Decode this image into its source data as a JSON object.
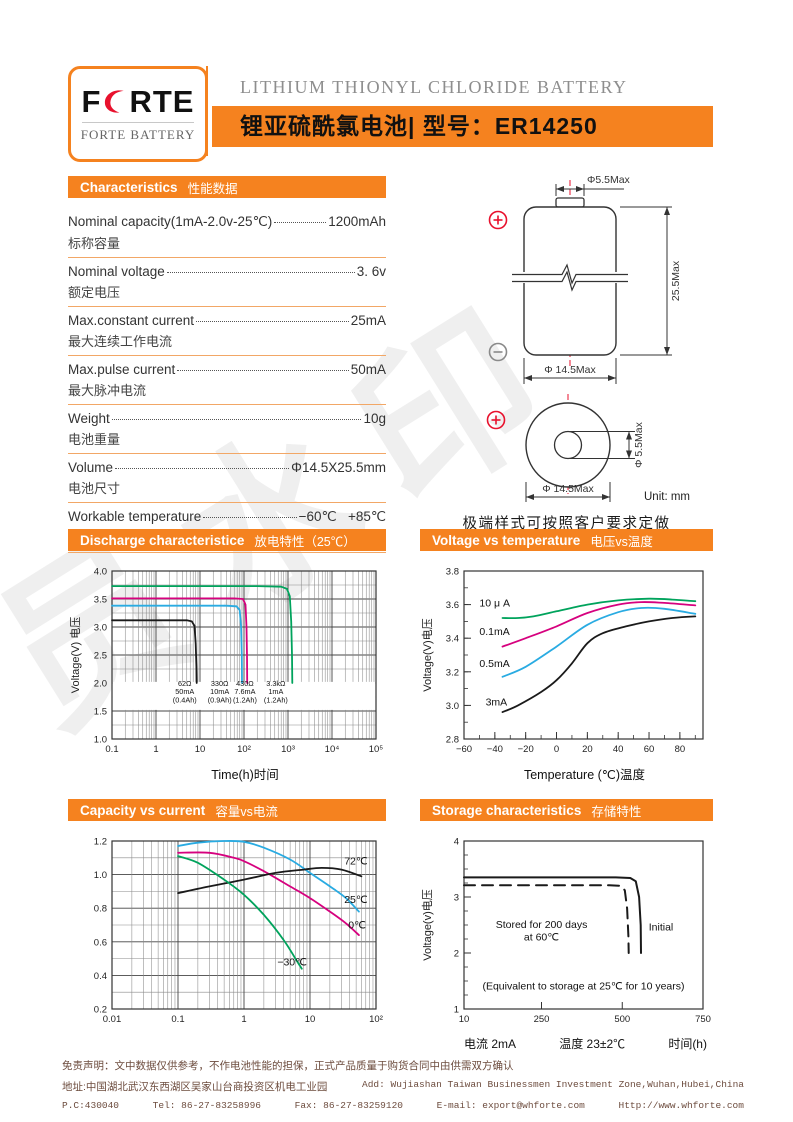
{
  "header": {
    "logo_left": "F",
    "logo_right": "RTE",
    "logo_sub": "FORTE BATTERY",
    "title_en": "LITHIUM THIONYL CHLORIDE BATTERY",
    "title_cn": "锂亚硫酰氯电池|  型号：ER14250"
  },
  "sections": {
    "characteristics": {
      "en": "Characteristics",
      "cn": "性能数据"
    },
    "discharge": {
      "en": "Discharge characteristice",
      "cn": "放电特性（25℃）"
    },
    "vtemp": {
      "en": "Voltage vs temperature",
      "cn": "电压vs温度"
    },
    "capacity": {
      "en": "Capacity vs current",
      "cn": "容量vs电流"
    },
    "storage": {
      "en": "Storage characteristics",
      "cn": "存储特性"
    }
  },
  "characteristics": {
    "rows": [
      {
        "en": "Nominal capacity(1mA-2.0v-25℃)",
        "value": "1200mAh",
        "cn": "标称容量"
      },
      {
        "en": "Nominal voltage",
        "value": "3. 6v",
        "cn": "额定电压"
      },
      {
        "en": "Max.constant current",
        "value": "25mA",
        "cn": "最大连续工作电流"
      },
      {
        "en": "Max.pulse current",
        "value": "50mA",
        "cn": "最大脉冲电流"
      },
      {
        "en": "Weight",
        "value": "10g",
        "cn": "电池重量"
      },
      {
        "en": "Volume",
        "value": "Φ14.5X25.5mm",
        "cn": "电池尺寸"
      },
      {
        "en": "Workable temperature",
        "value": "−60℃   +85℃",
        "cn": "工作温度"
      }
    ]
  },
  "diagram": {
    "cap_dia": "Φ5.5Max",
    "height": "25.5Max",
    "body_dia": "Φ 14.5Max",
    "top_inner": "Φ 5.5Max",
    "top_outer": "Φ 14.5Max",
    "unit": "Unit: mm",
    "note": "极端样式可按照客户要求定做"
  },
  "watermark": "员水印",
  "chart_data": [
    {
      "type": "line",
      "title": "Discharge characteristice 放电特性（25℃）",
      "xlabel": "Time(h)时间",
      "ylabel": "Voltage(V) 电压",
      "xscale": "log",
      "xlim": [
        0.1,
        100000
      ],
      "xticks": [
        0.1,
        1,
        10,
        100,
        1000,
        10000,
        100000
      ],
      "xtick_labels": [
        "0.1",
        "1",
        "10",
        "10²",
        "10³",
        "10⁴",
        "10⁵"
      ],
      "ylim": [
        1.0,
        4.0
      ],
      "yticks": [
        1.0,
        1.5,
        2.0,
        2.5,
        3.0,
        3.5,
        4.0
      ],
      "ytick_labels": [
        "1.0",
        "1.5",
        "2.0",
        "2.5",
        "3.0",
        "3.5",
        "4.0"
      ],
      "y_minor": 0.25,
      "grid": "full",
      "band": [
        1.52,
        2.02
      ],
      "smooth": false,
      "series": [
        {
          "name": "3.3kΩ 1mA (1.2Ah)",
          "color": "#00A35C",
          "points": [
            [
              0.1,
              3.73
            ],
            [
              10,
              3.73
            ],
            [
              200,
              3.73
            ],
            [
              700,
              3.72
            ],
            [
              950,
              3.68
            ],
            [
              1100,
              3.55
            ],
            [
              1180,
              3.1
            ],
            [
              1230,
              2.5
            ],
            [
              1250,
              2.0
            ]
          ]
        },
        {
          "name": "430Ω 7.6mA (1.2Ah)",
          "color": "#D6017E",
          "points": [
            [
              0.1,
              3.51
            ],
            [
              5,
              3.51
            ],
            [
              60,
              3.51
            ],
            [
              95,
              3.5
            ],
            [
              108,
              3.4
            ],
            [
              114,
              3.0
            ],
            [
              117,
              2.5
            ],
            [
              118,
              2.0
            ]
          ]
        },
        {
          "name": "330Ω 10mA (0.9Ah)",
          "color": "#29ABE2",
          "points": [
            [
              0.1,
              3.38
            ],
            [
              5,
              3.38
            ],
            [
              40,
              3.38
            ],
            [
              68,
              3.37
            ],
            [
              80,
              3.3
            ],
            [
              86,
              3.0
            ],
            [
              89,
              2.5
            ],
            [
              90,
              2.0
            ]
          ]
        },
        {
          "name": "62Ω 50mA (0.4Ah)",
          "color": "#1a1a1a",
          "points": [
            [
              0.1,
              3.12
            ],
            [
              2,
              3.12
            ],
            [
              5,
              3.12
            ],
            [
              6.5,
              3.1
            ],
            [
              7.5,
              3.02
            ],
            [
              8,
              2.7
            ],
            [
              8.3,
              2.3
            ],
            [
              8.4,
              2.0
            ]
          ]
        }
      ],
      "annotations": [
        {
          "x": 4.5,
          "y": 1.95,
          "lines": [
            "62Ω",
            "50mA",
            "(0.4Ah)"
          ]
        },
        {
          "x": 28,
          "y": 1.95,
          "lines": [
            "330Ω",
            "10mA",
            "(0.9Ah)"
          ]
        },
        {
          "x": 105,
          "y": 1.95,
          "lines": [
            "430Ω",
            "7.6mA",
            "(1.2Ah)"
          ]
        },
        {
          "x": 530,
          "y": 1.95,
          "lines": [
            "3.3kΩ",
            "1mA",
            "(1.2Ah)"
          ]
        }
      ]
    },
    {
      "type": "line",
      "title": "Voltage vs temperature 电压vs温度",
      "xlabel": "Temperature (℃)温度",
      "ylabel": "Voltage(V)电压",
      "xscale": "linear",
      "xlim": [
        -60,
        95
      ],
      "xticks": [
        -60,
        -40,
        -20,
        0,
        20,
        40,
        60,
        80
      ],
      "xtick_labels": [
        "−60",
        "−40",
        "−20",
        "0",
        "20",
        "40",
        "60",
        "80"
      ],
      "x_minor": 10,
      "ylim": [
        2.8,
        3.8
      ],
      "yticks": [
        2.8,
        3.0,
        3.2,
        3.4,
        3.6,
        3.8
      ],
      "ytick_labels": [
        "2.8",
        "3.0",
        "3.2",
        "3.4",
        "3.6",
        "3.8"
      ],
      "y_minor": 0.1,
      "grid": "ticks",
      "smooth": true,
      "series": [
        {
          "name": "10 μ A",
          "color": "#00A35C",
          "points": [
            [
              -35,
              3.52
            ],
            [
              -25,
              3.52
            ],
            [
              -15,
              3.53
            ],
            [
              0,
              3.56
            ],
            [
              20,
              3.6
            ],
            [
              40,
              3.625
            ],
            [
              60,
              3.635
            ],
            [
              75,
              3.63
            ],
            [
              90,
              3.62
            ]
          ]
        },
        {
          "name": "0.1mA",
          "color": "#D6017E",
          "points": [
            [
              -35,
              3.35
            ],
            [
              -20,
              3.4
            ],
            [
              0,
              3.47
            ],
            [
              20,
              3.55
            ],
            [
              40,
              3.6
            ],
            [
              55,
              3.615
            ],
            [
              70,
              3.61
            ],
            [
              90,
              3.595
            ]
          ]
        },
        {
          "name": "0.5mA",
          "color": "#29ABE2",
          "points": [
            [
              -35,
              3.17
            ],
            [
              -20,
              3.23
            ],
            [
              0,
              3.35
            ],
            [
              20,
              3.48
            ],
            [
              40,
              3.555
            ],
            [
              55,
              3.58
            ],
            [
              70,
              3.575
            ],
            [
              90,
              3.545
            ]
          ]
        },
        {
          "name": "3mA",
          "color": "#1a1a1a",
          "points": [
            [
              -35,
              2.96
            ],
            [
              -25,
              3.0
            ],
            [
              -10,
              3.08
            ],
            [
              0,
              3.15
            ],
            [
              10,
              3.25
            ],
            [
              20,
              3.37
            ],
            [
              30,
              3.43
            ],
            [
              45,
              3.47
            ],
            [
              60,
              3.5
            ],
            [
              75,
              3.52
            ],
            [
              90,
              3.53
            ]
          ]
        }
      ],
      "labels": [
        {
          "x": -50,
          "y": 3.59,
          "text": "10 μ A",
          "anchor": "start"
        },
        {
          "x": -50,
          "y": 3.42,
          "text": "0.1mA",
          "anchor": "start"
        },
        {
          "x": -50,
          "y": 3.23,
          "text": "0.5mA",
          "anchor": "start"
        },
        {
          "x": -46,
          "y": 3.0,
          "text": "3mA",
          "anchor": "start"
        }
      ]
    },
    {
      "type": "line",
      "title": "Capacity vs current 容量vs电流",
      "xlabel": "",
      "ylabel": "",
      "xscale": "log",
      "xlim": [
        0.01,
        100
      ],
      "xticks": [
        0.01,
        0.1,
        1,
        10,
        100
      ],
      "xtick_labels": [
        "0.01",
        "0.1",
        "1",
        "10",
        "10²"
      ],
      "ylim": [
        0.2,
        1.2
      ],
      "yticks": [
        0.2,
        0.4,
        0.6,
        0.8,
        1.0,
        1.2
      ],
      "ytick_labels": [
        "0.2",
        "0.4",
        "0.6",
        "0.8",
        "1.0",
        "1.2"
      ],
      "y_minor": 0.1,
      "grid": "full",
      "smooth": true,
      "series": [
        {
          "name": "25℃",
          "color": "#29ABE2",
          "points": [
            [
              0.1,
              1.17
            ],
            [
              0.2,
              1.19
            ],
            [
              0.5,
              1.2
            ],
            [
              1,
              1.195
            ],
            [
              2,
              1.16
            ],
            [
              5,
              1.09
            ],
            [
              10,
              1.01
            ],
            [
              20,
              0.93
            ],
            [
              35,
              0.86
            ],
            [
              55,
              0.78
            ]
          ]
        },
        {
          "name": "0℃",
          "color": "#D6017E",
          "points": [
            [
              0.1,
              1.13
            ],
            [
              0.3,
              1.13
            ],
            [
              0.7,
              1.1
            ],
            [
              1,
              1.08
            ],
            [
              2,
              1.02
            ],
            [
              5,
              0.93
            ],
            [
              10,
              0.86
            ],
            [
              20,
              0.78
            ],
            [
              35,
              0.71
            ],
            [
              55,
              0.64
            ]
          ]
        },
        {
          "name": "72℃",
          "color": "#1a1a1a",
          "points": [
            [
              0.1,
              0.89
            ],
            [
              0.3,
              0.93
            ],
            [
              1,
              0.97
            ],
            [
              3,
              1.01
            ],
            [
              8,
              1.03
            ],
            [
              15,
              1.04
            ],
            [
              30,
              1.03
            ],
            [
              60,
              0.99
            ]
          ]
        },
        {
          "name": "−30℃",
          "color": "#00A35C",
          "points": [
            [
              0.1,
              1.11
            ],
            [
              0.2,
              1.07
            ],
            [
              0.5,
              0.97
            ],
            [
              1,
              0.88
            ],
            [
              2,
              0.76
            ],
            [
              4,
              0.61
            ],
            [
              6,
              0.5
            ],
            [
              7.5,
              0.44
            ]
          ]
        }
      ],
      "labels": [
        {
          "x": 33,
          "y": 1.06,
          "text": "72℃",
          "anchor": "start"
        },
        {
          "x": 33,
          "y": 0.83,
          "text": "25℃",
          "anchor": "start"
        },
        {
          "x": 38,
          "y": 0.68,
          "text": "0℃",
          "anchor": "start"
        },
        {
          "x": 3.2,
          "y": 0.46,
          "text": "−30℃",
          "anchor": "start"
        }
      ]
    },
    {
      "type": "line",
      "title": "Storage characteristics 存储特性",
      "xlabel": "",
      "ylabel": "Voltage(v)电压",
      "xscale": "linear",
      "xlim": [
        10,
        750
      ],
      "xticks": [
        10,
        250,
        500,
        750
      ],
      "xtick_labels": [
        "10",
        "250",
        "500",
        "750"
      ],
      "ylim": [
        1,
        4
      ],
      "yticks": [
        1,
        2,
        3,
        4
      ],
      "ytick_labels": [
        "1",
        "2",
        "3",
        "4"
      ],
      "y_minor": 0.25,
      "grid": "ticks",
      "smooth": false,
      "series": [
        {
          "name": "Initial",
          "color": "#1a1a1a",
          "width": 2,
          "points": [
            [
              10,
              3.35
            ],
            [
              480,
              3.35
            ],
            [
              525,
              3.34
            ],
            [
              542,
              3.28
            ],
            [
              552,
              3.0
            ],
            [
              557,
              2.5
            ],
            [
              558,
              2.0
            ]
          ]
        },
        {
          "name": "Stored for 200 days at 60℃",
          "color": "#1a1a1a",
          "width": 2,
          "dash": "11 7",
          "points": [
            [
              10,
              3.21
            ],
            [
              460,
              3.21
            ],
            [
              495,
              3.2
            ],
            [
              508,
              3.12
            ],
            [
              515,
              2.8
            ],
            [
              519,
              2.3
            ],
            [
              520,
              2.0
            ]
          ]
        }
      ],
      "labels": [
        {
          "x": 250,
          "y": 2.45,
          "text": "Stored for 200 days",
          "anchor": "middle",
          "size": 9.5
        },
        {
          "x": 250,
          "y": 2.22,
          "text": "at 60℃",
          "anchor": "middle",
          "size": 9.5
        },
        {
          "x": 620,
          "y": 2.4,
          "text": "Initial",
          "anchor": "middle",
          "size": 9.5
        },
        {
          "x": 380,
          "y": 1.35,
          "text": "(Equivalent to storage at 25℃ for 10 years)",
          "anchor": "middle",
          "size": 8.5
        }
      ],
      "xnote": [
        "电流  2mA",
        "温度  23±2℃",
        "时间(h)"
      ]
    }
  ],
  "footer": {
    "disclaimer": "免责声明：文中数据仅供参考，不作电池性能的担保，正式产品质量于购货合同中由供需双方确认",
    "address_cn": "地址:中国湖北武汉东西湖区吴家山台商投资区机电工业园",
    "address_en": "Add: Wujiashan Taiwan Businessmen Investment Zone,Wuhan,Hubei,China",
    "postcode": "P.C:430040",
    "tel": "Tel: 86-27-83258996",
    "fax": "Fax: 86-27-83259120",
    "email": "E-mail: export@whforte.com",
    "web": "Http://www.whforte.com"
  }
}
